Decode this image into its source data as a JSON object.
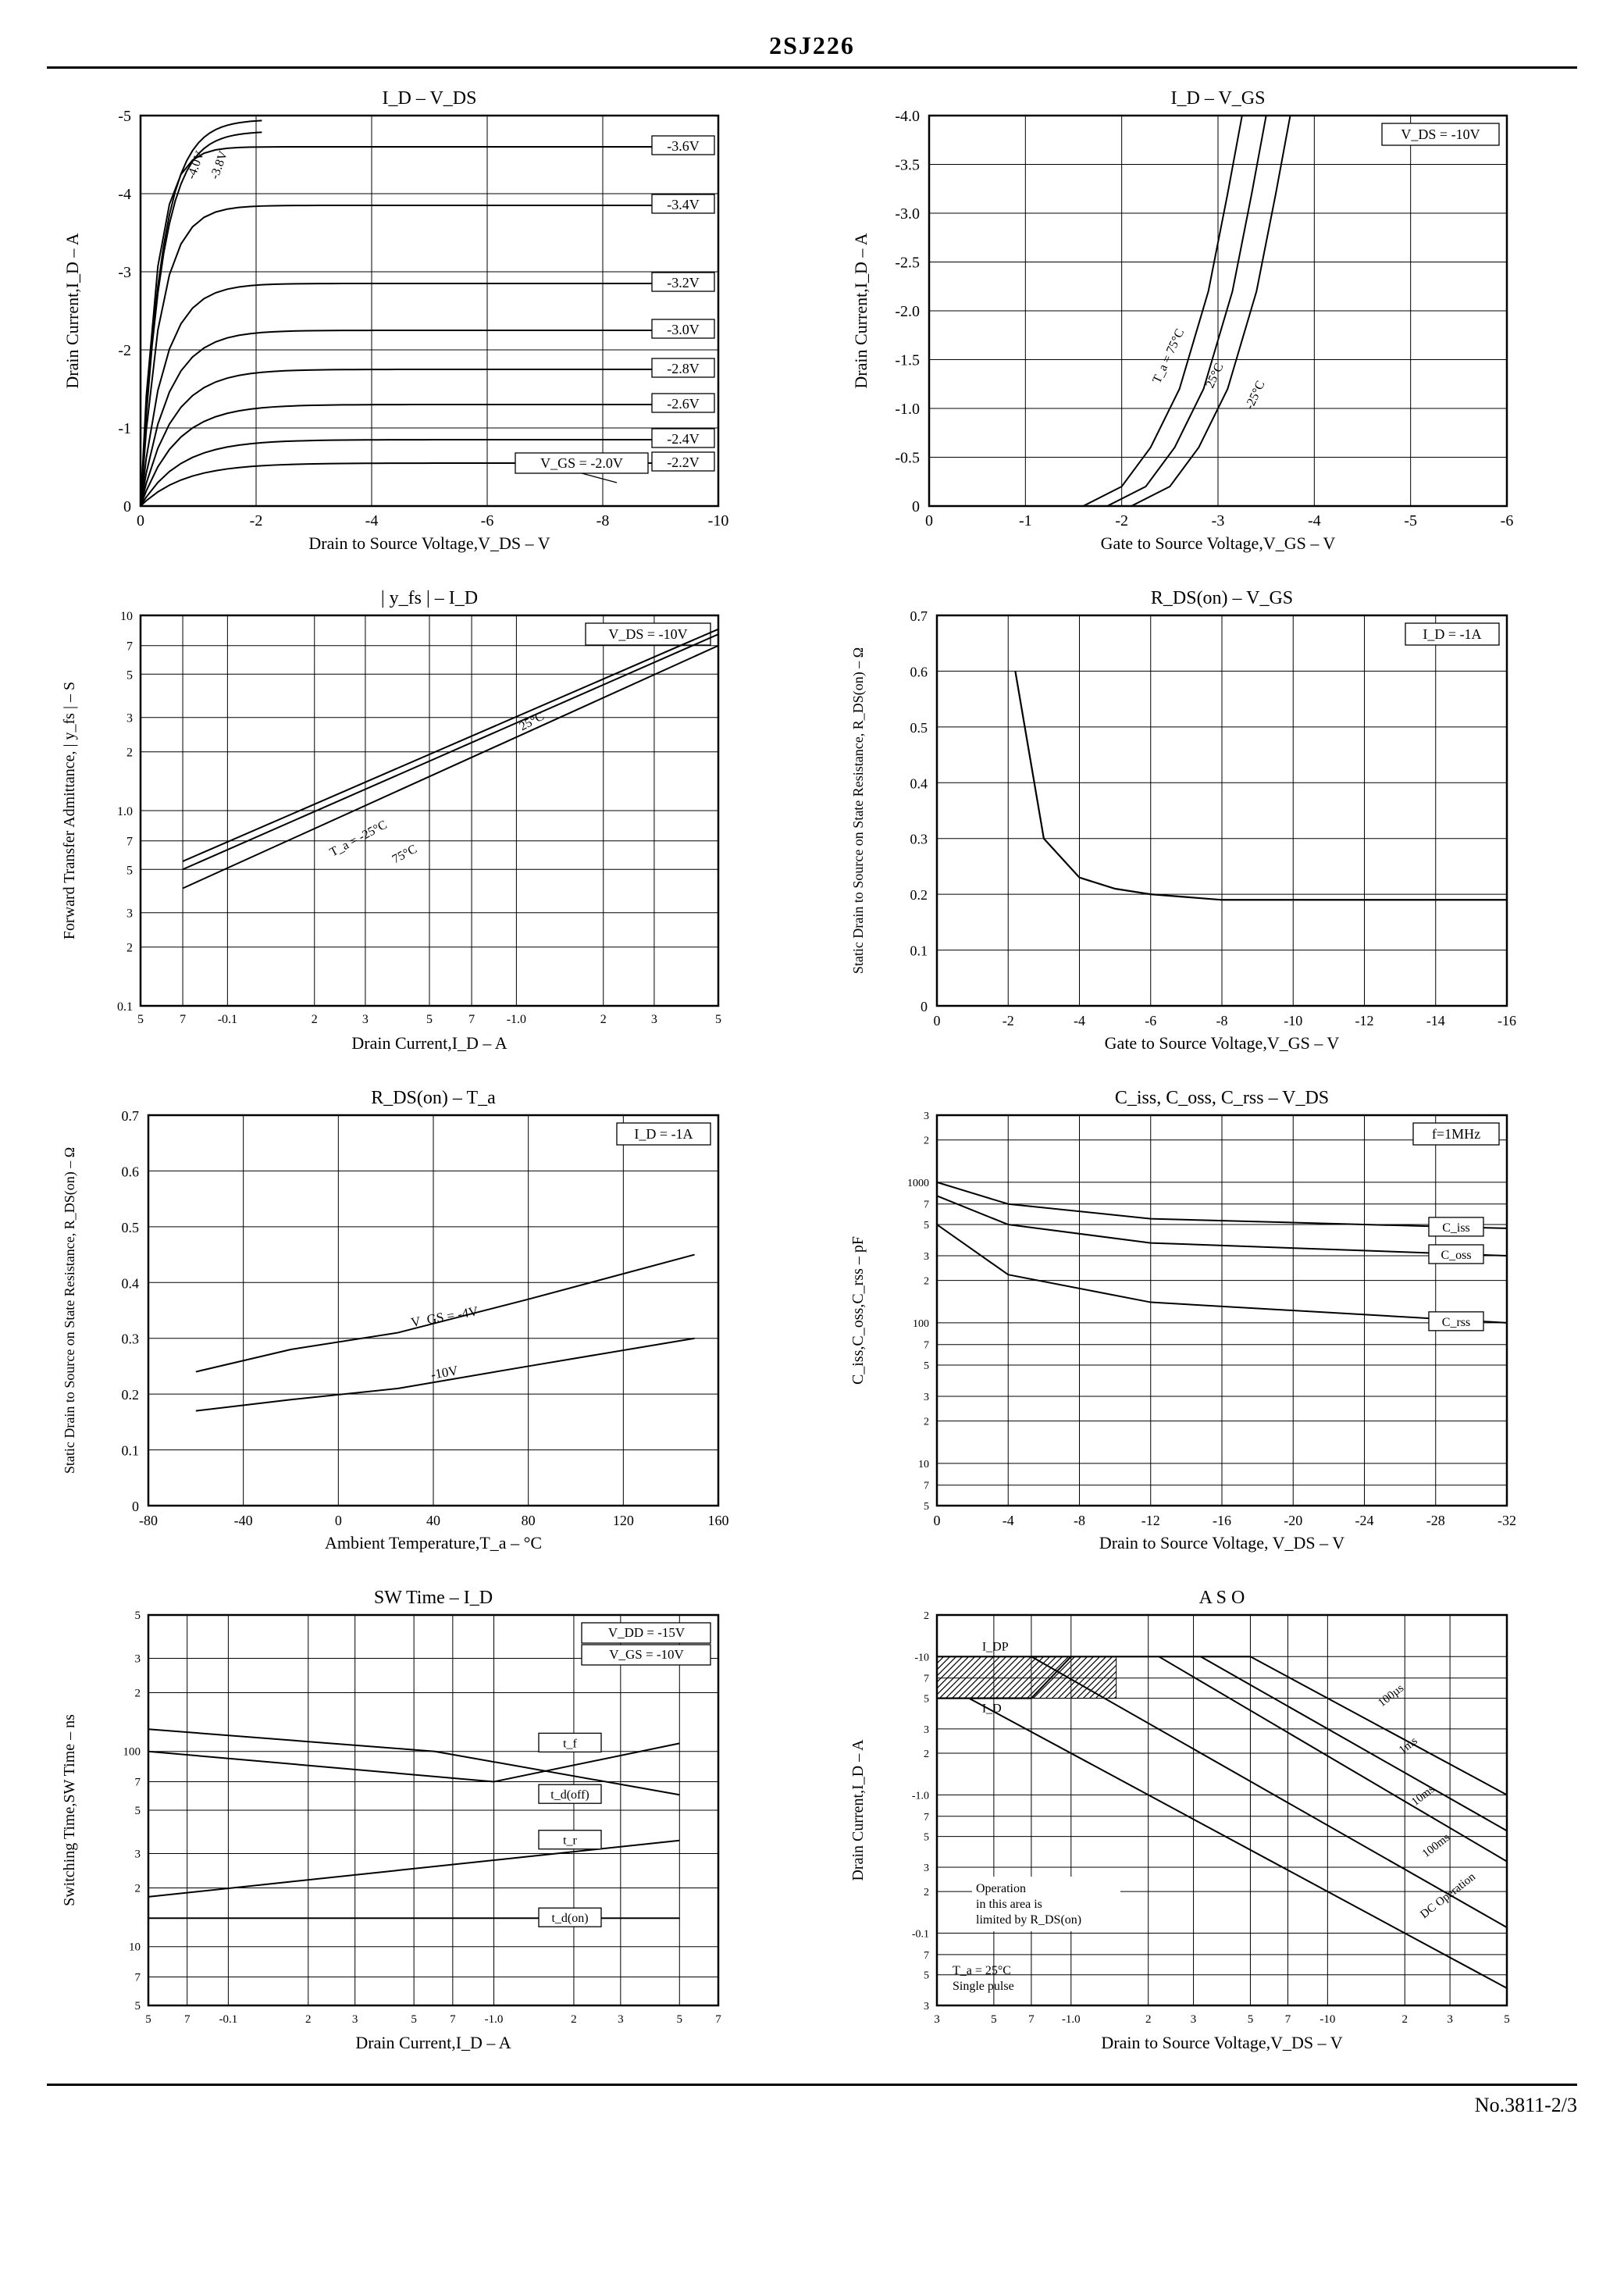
{
  "page": {
    "title": "2SJ226",
    "footer": "No.3811-2/3"
  },
  "charts": [
    {
      "id": "id_vds",
      "title": "I_D  –  V_DS",
      "xlabel": "Drain to Source Voltage,V_DS – V",
      "ylabel": "Drain Current,I_D – A",
      "xlim": [
        0,
        -10
      ],
      "ylim": [
        0,
        -5
      ],
      "xticks": [
        "0",
        "-2",
        "-4",
        "-6",
        "-8",
        "-10"
      ],
      "yticks": [
        "0",
        "-1",
        "-2",
        "-3",
        "-4",
        "-5"
      ],
      "grid_color": "#000000",
      "line_color": "#000000",
      "curves": [
        {
          "label": "-3.6V",
          "plateau": -4.6
        },
        {
          "label": "-3.4V",
          "plateau": -3.85
        },
        {
          "label": "-3.2V",
          "plateau": -2.85
        },
        {
          "label": "-3.0V",
          "plateau": -2.25
        },
        {
          "label": "-2.8V",
          "plateau": -1.75
        },
        {
          "label": "-2.6V",
          "plateau": -1.3
        },
        {
          "label": "-2.4V",
          "plateau": -0.85
        },
        {
          "label": "-2.2V",
          "plateau": -0.55
        }
      ],
      "fan_labels": [
        "-4.0V",
        "-3.8V"
      ],
      "vgs_note": "V_GS = -2.0V"
    },
    {
      "id": "id_vgs",
      "title": "I_D  –  V_GS",
      "xlabel": "Gate to Source Voltage,V_GS – V",
      "ylabel": "Drain Current,I_D – A",
      "xlim": [
        0,
        -6
      ],
      "ylim": [
        0,
        -4.0
      ],
      "xticks": [
        "0",
        "-1",
        "-2",
        "-3",
        "-4",
        "-5",
        "-6"
      ],
      "yticks": [
        "0",
        "-0.5",
        "-1.0",
        "-1.5",
        "-2.0",
        "-2.5",
        "-3.0",
        "-3.5",
        "-4.0"
      ],
      "note": "V_DS = -10V",
      "temps": [
        "T_a = 75°C",
        "25°C",
        "-25°C"
      ],
      "curves_x": [
        -1.6,
        -2.0,
        -2.3,
        -2.6,
        -2.9,
        -3.1,
        -3.25
      ],
      "curves_y": [
        0,
        -0.2,
        -0.6,
        -1.2,
        -2.2,
        -3.2,
        -4.0
      ],
      "offsets": [
        0,
        0.25,
        0.5
      ]
    },
    {
      "id": "yfs_id",
      "title": "| y_fs |  –  I_D",
      "xlabel": "Drain Current,I_D – A",
      "ylabel": "Forward Transfer Admittance, | y_fs |  – S",
      "xscale": "log",
      "yscale": "log",
      "xticks": [
        "5",
        "7",
        "-0.1",
        "2",
        "3",
        "5",
        "7",
        "-1.0",
        "2",
        "3",
        "5"
      ],
      "yticks": [
        "0.1",
        "2",
        "3",
        "5",
        "7",
        "1.0",
        "2",
        "3",
        "5",
        "7",
        "10"
      ],
      "note": "V_DS = -10V",
      "temps": [
        "T_a = -25°C",
        "25°C",
        "75°C"
      ],
      "curves": [
        {
          "x": [
            0.07,
            5
          ],
          "y": [
            0.4,
            7
          ]
        },
        {
          "x": [
            0.07,
            5
          ],
          "y": [
            0.5,
            8
          ]
        },
        {
          "x": [
            0.07,
            5
          ],
          "y": [
            0.55,
            8.5
          ]
        }
      ]
    },
    {
      "id": "rds_vgs",
      "title": "R_DS(on)  –  V_GS",
      "xlabel": "Gate to Source Voltage,V_GS – V",
      "ylabel": "Static Drain to Source\non State Resistance, R_DS(on) – Ω",
      "xlim": [
        0,
        -16
      ],
      "ylim": [
        0,
        0.7
      ],
      "xticks": [
        "0",
        "-2",
        "-4",
        "-6",
        "-8",
        "-10",
        "-12",
        "-14",
        "-16"
      ],
      "yticks": [
        "0",
        "0.1",
        "0.2",
        "0.3",
        "0.4",
        "0.5",
        "0.6",
        "0.7"
      ],
      "note": "I_D = -1A",
      "curve": {
        "x": [
          -2.2,
          -3,
          -4,
          -5,
          -6,
          -8,
          -16
        ],
        "y": [
          0.6,
          0.3,
          0.23,
          0.21,
          0.2,
          0.19,
          0.19
        ]
      }
    },
    {
      "id": "rds_ta",
      "title": "R_DS(on)  –  T_a",
      "xlabel": "Ambient Temperature,T_a – °C",
      "ylabel": "Static Drain to Source\non State Resistance, R_DS(on) – Ω",
      "xlim": [
        -80,
        160
      ],
      "ylim": [
        0,
        0.7
      ],
      "xticks": [
        "-80",
        "-40",
        "0",
        "40",
        "80",
        "120",
        "160"
      ],
      "yticks": [
        "0",
        "0.1",
        "0.2",
        "0.3",
        "0.4",
        "0.5",
        "0.6",
        "0.7"
      ],
      "note": "I_D = -1A",
      "curves": [
        {
          "label": "V_GS = -4V",
          "x": [
            -60,
            -20,
            25,
            80,
            150
          ],
          "y": [
            0.24,
            0.28,
            0.31,
            0.37,
            0.45
          ]
        },
        {
          "label": "-10V",
          "x": [
            -60,
            -20,
            25,
            80,
            150
          ],
          "y": [
            0.17,
            0.19,
            0.21,
            0.25,
            0.3
          ]
        }
      ]
    },
    {
      "id": "ciss",
      "title": "C_iss, C_oss, C_rss  –  V_DS",
      "xlabel": "Drain to Source Voltage, V_DS – V",
      "ylabel": "C_iss,C_oss,C_rss – pF",
      "yscale": "log",
      "xlim": [
        0,
        -32
      ],
      "xticks": [
        "0",
        "-4",
        "-8",
        "-12",
        "-16",
        "-20",
        "-24",
        "-28",
        "-32"
      ],
      "yticks": [
        "5",
        "7",
        "10",
        "2",
        "3",
        "5",
        "7",
        "100",
        "2",
        "3",
        "5",
        "7",
        "1000",
        "2",
        "3"
      ],
      "note": "f=1MHz",
      "curves": [
        {
          "label": "C_iss",
          "x": [
            0,
            -4,
            -12,
            -32
          ],
          "y": [
            1000,
            700,
            550,
            470
          ]
        },
        {
          "label": "C_oss",
          "x": [
            0,
            -4,
            -12,
            -32
          ],
          "y": [
            800,
            500,
            370,
            300
          ]
        },
        {
          "label": "C_rss",
          "x": [
            0,
            -4,
            -12,
            -32
          ],
          "y": [
            500,
            220,
            140,
            100
          ]
        }
      ]
    },
    {
      "id": "sw",
      "title": "SW Time  –  I_D",
      "xlabel": "Drain Current,I_D – A",
      "ylabel": "Switching Time,SW Time – ns",
      "xscale": "log",
      "yscale": "log",
      "xticks": [
        "5",
        "7",
        "-0.1",
        "2",
        "3",
        "5",
        "7",
        "-1.0",
        "2",
        "3",
        "5",
        "7"
      ],
      "yticks": [
        "5",
        "7",
        "10",
        "2",
        "3",
        "5",
        "7",
        "100",
        "2",
        "3",
        "5"
      ],
      "notes": [
        "V_DD = -15V",
        "V_GS = -10V"
      ],
      "curves": [
        {
          "label": "t_d(off)",
          "x": [
            0.05,
            0.6,
            5
          ],
          "y": [
            130,
            100,
            60
          ]
        },
        {
          "label": "t_f",
          "x": [
            0.05,
            1,
            5
          ],
          "y": [
            100,
            70,
            110
          ]
        },
        {
          "label": "t_r",
          "x": [
            0.05,
            5
          ],
          "y": [
            18,
            35
          ]
        },
        {
          "label": "t_d(on)",
          "x": [
            0.05,
            5
          ],
          "y": [
            14,
            14
          ]
        }
      ]
    },
    {
      "id": "aso",
      "title": "A S O",
      "xlabel": "Drain to Source Voltage,V_DS – V",
      "ylabel": "Drain Current,I_D – A",
      "xscale": "log",
      "yscale": "log",
      "xticks": [
        "3",
        "5",
        "7",
        "-1.0",
        "2",
        "3",
        "5",
        "7",
        "-10",
        "2",
        "3",
        "5"
      ],
      "yticks": [
        "3",
        "5",
        "7",
        "-0.1",
        "2",
        "3",
        "5",
        "7",
        "-1.0",
        "2",
        "3",
        "5",
        "7",
        "-10",
        "2"
      ],
      "notes": [
        "T_a = 25°C",
        "Single pulse"
      ],
      "idp_label": "I_DP",
      "id_label": "I_D",
      "op_note": "Operation\nin this area is\nlimited by R_DS(on)",
      "pulse_labels": [
        "100µs",
        "1ms",
        "10ms",
        "100ms",
        "DC Operation"
      ],
      "curves": [
        {
          "x": [
            0.7,
            1
          ],
          "y": [
            -5,
            -10
          ]
        },
        {
          "x": [
            5,
            50
          ],
          "y": [
            -10,
            -1
          ]
        },
        {
          "x": [
            3.2,
            50
          ],
          "y": [
            -10,
            -0.55
          ]
        },
        {
          "x": [
            2.2,
            50
          ],
          "y": [
            -10,
            -0.33
          ]
        },
        {
          "x": [
            0.7,
            50
          ],
          "y": [
            -10,
            -0.11
          ]
        },
        {
          "x": [
            0.4,
            50
          ],
          "y": [
            -5,
            -0.04
          ]
        }
      ],
      "hatched": {
        "x": [
          0.3,
          1.5
        ],
        "y": [
          -5,
          -10
        ]
      }
    }
  ]
}
